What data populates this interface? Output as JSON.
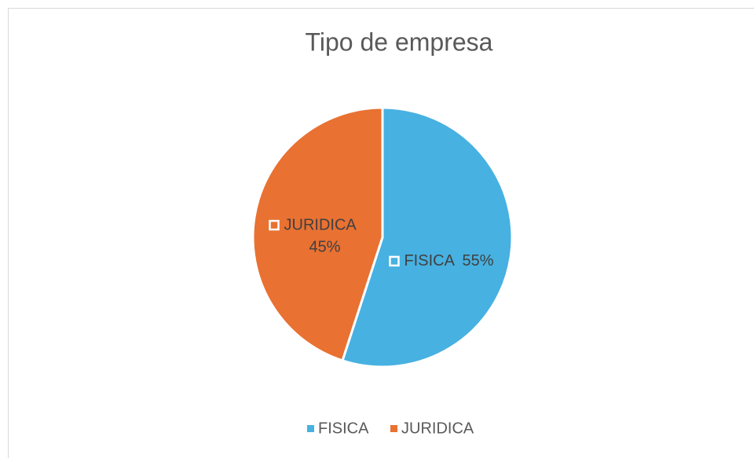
{
  "chart_data": {
    "type": "pie",
    "title": "Tipo de empresa",
    "categories": [
      "FISICA",
      "JURIDICA"
    ],
    "values": [
      55,
      45
    ],
    "value_labels": [
      "55%",
      "45%"
    ],
    "colors": [
      "#47b1e1",
      "#e97132"
    ],
    "legend": "bottom"
  }
}
